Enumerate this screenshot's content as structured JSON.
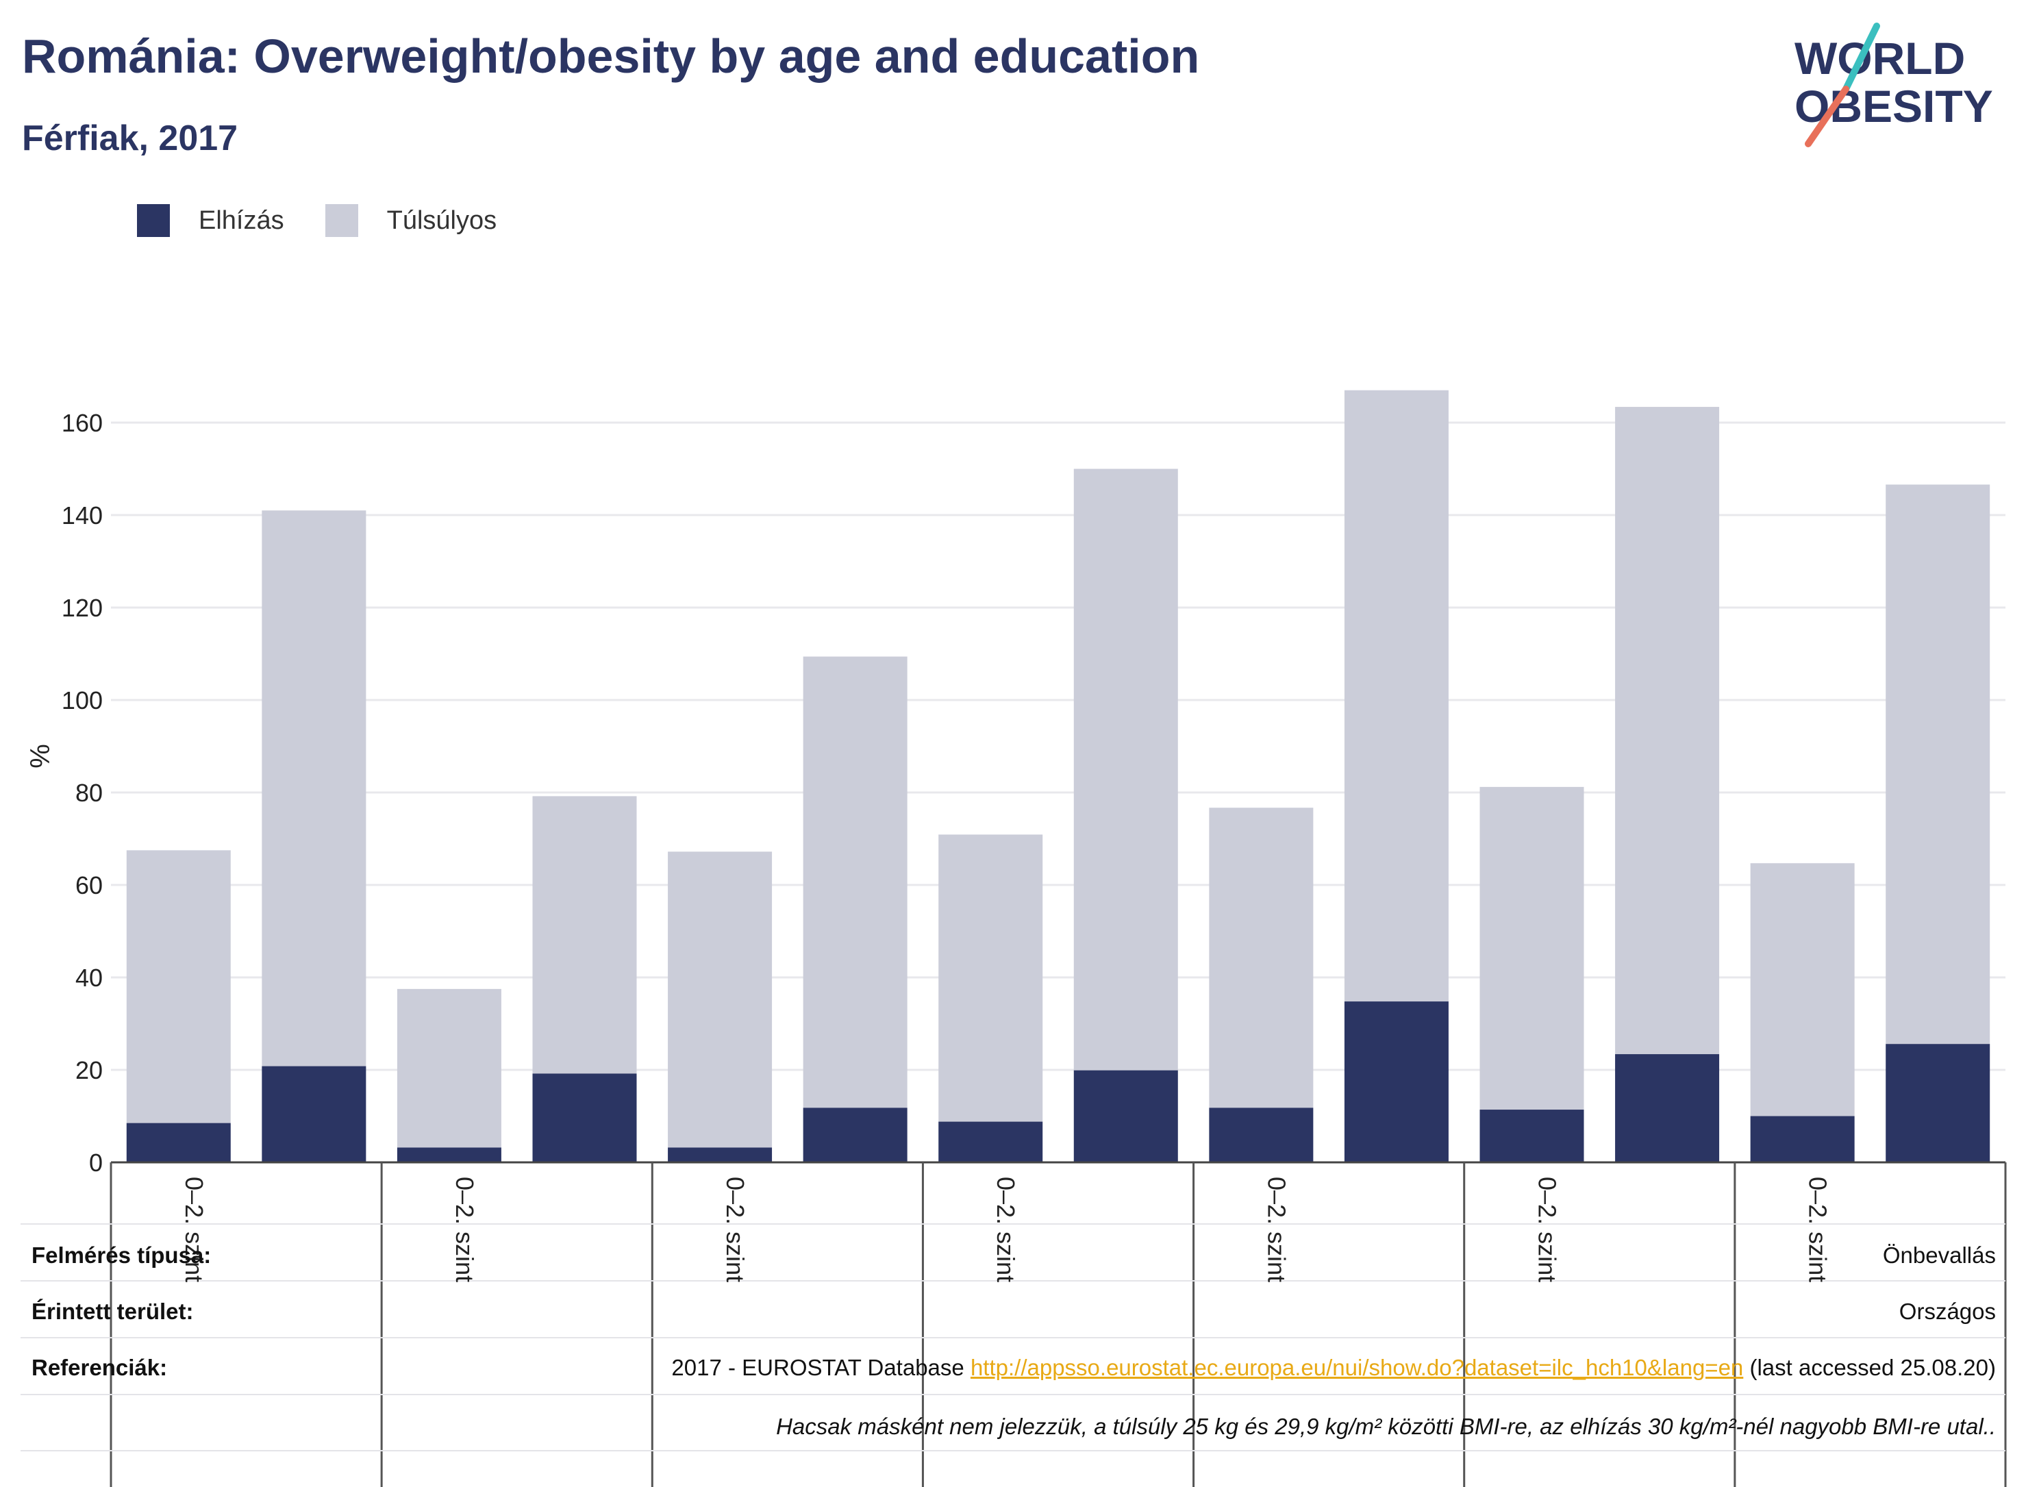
{
  "header": {
    "title": "Románia: Overweight/obesity by age and education",
    "subtitle": "Férfiak, 2017"
  },
  "logo": {
    "line1": "WORLD",
    "line2": "OBESITY"
  },
  "colors": {
    "obesity": "#2b3563",
    "overweight": "#cbcdd9",
    "title": "#2b3563",
    "link": "#e8a915",
    "logo_teal": "#3bbfbf",
    "logo_coral": "#e8705a"
  },
  "legend": [
    {
      "label": "Elhízás",
      "color": "#2b3563"
    },
    {
      "label": "Túlsúlyos",
      "color": "#cbcdd9"
    }
  ],
  "chart_data": {
    "type": "bar",
    "stacked": true,
    "ylabel": "%",
    "ylim": [
      0,
      170
    ],
    "yticks": [
      0,
      20,
      40,
      60,
      80,
      100,
      120,
      140,
      160
    ],
    "grid": true,
    "legend_position": "top-left",
    "categories": [
      "0–2. szint",
      "",
      "0–2. szint",
      "",
      "0–2. szint",
      "",
      "0–2. szint",
      "",
      "0–2. szint",
      "",
      "0–2. szint",
      "",
      "0–2. szint",
      ""
    ],
    "group_labels": [
      "0–2. szint",
      "0–2. szint",
      "0–2. szint",
      "0–2. szint",
      "0–2. szint",
      "0–2. szint",
      "0–2. szint"
    ],
    "series": [
      {
        "name": "Elhízás",
        "values": [
          8.5,
          20.8,
          3.2,
          19.2,
          3.2,
          11.8,
          8.8,
          19.9,
          11.8,
          34.8,
          11.4,
          23.4,
          10.0,
          25.6
        ]
      },
      {
        "name": "Túlsúlyos",
        "values": [
          59.0,
          120.2,
          34.3,
          60.0,
          64.0,
          97.6,
          62.1,
          130.1,
          64.9,
          132.2,
          69.8,
          140.0,
          54.7,
          121.0
        ]
      }
    ]
  },
  "info": {
    "survey_label": "Felmérés típusa:",
    "survey_value": "Önbevallás",
    "area_label": "Érintett terület:",
    "area_value": "Országos",
    "refs_label": "Referenciák:",
    "refs_prefix": "2017 - EUROSTAT Database ",
    "refs_link": "http://appsso.eurostat.ec.europa.eu/nui/show.do?dataset=ilc_hch10&lang=en",
    "refs_suffix": " (last accessed 25.08.20)",
    "note": "Hacsak másként nem jelezzük, a túlsúly 25 kg és 29,9 kg/m² közötti BMI-re, az elhízás 30 kg/m²-nél nagyobb BMI-re utal.."
  }
}
